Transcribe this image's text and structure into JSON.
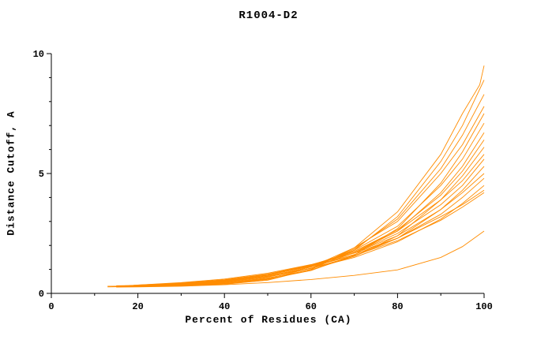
{
  "chart_data": {
    "type": "line",
    "title": "R1004-D2",
    "xlabel": "Percent of Residues (CA)",
    "ylabel": "Distance Cutoff, A",
    "xlim": [
      0,
      100
    ],
    "ylim": [
      0,
      10
    ],
    "x_major_ticks": [
      0,
      20,
      40,
      60,
      80,
      100
    ],
    "x_minor_ticks": [
      10,
      30,
      50,
      70,
      90
    ],
    "y_major_ticks": [
      0,
      5,
      10
    ],
    "y_minor_ticks": [
      1,
      2,
      3,
      4,
      6,
      7,
      8,
      9
    ],
    "grid": false,
    "legend": "none",
    "line_color": "#ff8c00",
    "axis_color": "#000000",
    "series": [
      {
        "points": [
          [
            13,
            0.3
          ],
          [
            20,
            0.3
          ],
          [
            30,
            0.32
          ],
          [
            40,
            0.38
          ],
          [
            50,
            0.55
          ],
          [
            60,
            1.0
          ],
          [
            70,
            1.9
          ],
          [
            80,
            3.4
          ],
          [
            90,
            5.8
          ],
          [
            95,
            7.5
          ],
          [
            99,
            8.7
          ],
          [
            100,
            9.5
          ]
        ]
      },
      {
        "points": [
          [
            14,
            0.28
          ],
          [
            20,
            0.3
          ],
          [
            30,
            0.33
          ],
          [
            40,
            0.4
          ],
          [
            50,
            0.58
          ],
          [
            60,
            1.0
          ],
          [
            70,
            1.8
          ],
          [
            80,
            3.2
          ],
          [
            90,
            5.5
          ],
          [
            95,
            7.0
          ],
          [
            100,
            8.9
          ]
        ]
      },
      {
        "points": [
          [
            14,
            0.3
          ],
          [
            20,
            0.31
          ],
          [
            30,
            0.35
          ],
          [
            40,
            0.44
          ],
          [
            50,
            0.62
          ],
          [
            60,
            1.05
          ],
          [
            70,
            1.85
          ],
          [
            80,
            3.1
          ],
          [
            90,
            5.2
          ],
          [
            95,
            6.6
          ],
          [
            100,
            8.3
          ]
        ]
      },
      {
        "points": [
          [
            15,
            0.32
          ],
          [
            20,
            0.33
          ],
          [
            30,
            0.38
          ],
          [
            40,
            0.48
          ],
          [
            50,
            0.68
          ],
          [
            60,
            1.1
          ],
          [
            70,
            1.9
          ],
          [
            80,
            3.0
          ],
          [
            90,
            5.0
          ],
          [
            95,
            6.2
          ],
          [
            100,
            7.8
          ]
        ]
      },
      {
        "points": [
          [
            13,
            0.27
          ],
          [
            20,
            0.29
          ],
          [
            30,
            0.33
          ],
          [
            40,
            0.42
          ],
          [
            50,
            0.6
          ],
          [
            60,
            0.95
          ],
          [
            70,
            1.6
          ],
          [
            80,
            2.7
          ],
          [
            90,
            4.6
          ],
          [
            95,
            5.9
          ],
          [
            100,
            7.5
          ]
        ]
      },
      {
        "points": [
          [
            16,
            0.3
          ],
          [
            20,
            0.32
          ],
          [
            30,
            0.38
          ],
          [
            40,
            0.5
          ],
          [
            50,
            0.72
          ],
          [
            60,
            1.1
          ],
          [
            70,
            1.8
          ],
          [
            80,
            2.8
          ],
          [
            90,
            4.5
          ],
          [
            95,
            5.6
          ],
          [
            100,
            7.1
          ]
        ]
      },
      {
        "points": [
          [
            15,
            0.28
          ],
          [
            20,
            0.3
          ],
          [
            30,
            0.36
          ],
          [
            40,
            0.47
          ],
          [
            50,
            0.68
          ],
          [
            60,
            1.05
          ],
          [
            70,
            1.7
          ],
          [
            80,
            2.6
          ],
          [
            90,
            4.2
          ],
          [
            95,
            5.3
          ],
          [
            100,
            6.7
          ]
        ]
      },
      {
        "points": [
          [
            17,
            0.32
          ],
          [
            20,
            0.33
          ],
          [
            30,
            0.4
          ],
          [
            40,
            0.52
          ],
          [
            50,
            0.75
          ],
          [
            60,
            1.15
          ],
          [
            70,
            1.75
          ],
          [
            80,
            2.65
          ],
          [
            90,
            4.1
          ],
          [
            95,
            5.1
          ],
          [
            100,
            6.4
          ]
        ]
      },
      {
        "points": [
          [
            14,
            0.29
          ],
          [
            20,
            0.3
          ],
          [
            30,
            0.35
          ],
          [
            40,
            0.45
          ],
          [
            50,
            0.64
          ],
          [
            60,
            0.98
          ],
          [
            70,
            1.55
          ],
          [
            80,
            2.4
          ],
          [
            90,
            3.9
          ],
          [
            95,
            4.9
          ],
          [
            100,
            6.1
          ]
        ]
      },
      {
        "points": [
          [
            18,
            0.33
          ],
          [
            20,
            0.34
          ],
          [
            30,
            0.42
          ],
          [
            40,
            0.55
          ],
          [
            50,
            0.78
          ],
          [
            60,
            1.18
          ],
          [
            70,
            1.75
          ],
          [
            80,
            2.6
          ],
          [
            90,
            3.9
          ],
          [
            95,
            4.7
          ],
          [
            100,
            5.8
          ]
        ]
      },
      {
        "points": [
          [
            16,
            0.3
          ],
          [
            20,
            0.32
          ],
          [
            30,
            0.4
          ],
          [
            40,
            0.53
          ],
          [
            50,
            0.76
          ],
          [
            60,
            1.15
          ],
          [
            70,
            1.7
          ],
          [
            80,
            2.5
          ],
          [
            90,
            3.7
          ],
          [
            95,
            4.5
          ],
          [
            100,
            5.6
          ]
        ]
      },
      {
        "points": [
          [
            15,
            0.28
          ],
          [
            20,
            0.3
          ],
          [
            30,
            0.37
          ],
          [
            40,
            0.49
          ],
          [
            50,
            0.7
          ],
          [
            60,
            1.05
          ],
          [
            70,
            1.55
          ],
          [
            80,
            2.3
          ],
          [
            90,
            3.5
          ],
          [
            95,
            4.3
          ],
          [
            100,
            5.3
          ]
        ]
      },
      {
        "points": [
          [
            19,
            0.34
          ],
          [
            30,
            0.43
          ],
          [
            40,
            0.57
          ],
          [
            50,
            0.8
          ],
          [
            60,
            1.18
          ],
          [
            70,
            1.7
          ],
          [
            80,
            2.4
          ],
          [
            90,
            3.5
          ],
          [
            95,
            4.2
          ],
          [
            100,
            5.0
          ]
        ]
      },
      {
        "points": [
          [
            17,
            0.31
          ],
          [
            20,
            0.33
          ],
          [
            30,
            0.41
          ],
          [
            40,
            0.54
          ],
          [
            50,
            0.77
          ],
          [
            60,
            1.13
          ],
          [
            70,
            1.62
          ],
          [
            80,
            2.3
          ],
          [
            90,
            3.3
          ],
          [
            95,
            4.0
          ],
          [
            100,
            4.8
          ]
        ]
      },
      {
        "points": [
          [
            16,
            0.29
          ],
          [
            20,
            0.31
          ],
          [
            30,
            0.38
          ],
          [
            40,
            0.5
          ],
          [
            50,
            0.71
          ],
          [
            60,
            1.04
          ],
          [
            70,
            1.5
          ],
          [
            80,
            2.15
          ],
          [
            90,
            3.1
          ],
          [
            95,
            3.75
          ],
          [
            100,
            4.5
          ]
        ]
      },
      {
        "points": [
          [
            20,
            0.35
          ],
          [
            30,
            0.45
          ],
          [
            40,
            0.6
          ],
          [
            50,
            0.84
          ],
          [
            60,
            1.2
          ],
          [
            70,
            1.68
          ],
          [
            80,
            2.3
          ],
          [
            90,
            3.2
          ],
          [
            95,
            3.7
          ],
          [
            100,
            4.3
          ]
        ]
      },
      {
        "points": [
          [
            18,
            0.32
          ],
          [
            20,
            0.33
          ],
          [
            30,
            0.42
          ],
          [
            40,
            0.55
          ],
          [
            50,
            0.78
          ],
          [
            60,
            1.12
          ],
          [
            70,
            1.58
          ],
          [
            80,
            2.2
          ],
          [
            90,
            3.05
          ],
          [
            95,
            3.6
          ],
          [
            100,
            4.2
          ]
        ]
      },
      {
        "points": [
          [
            15,
            0.26
          ],
          [
            20,
            0.27
          ],
          [
            30,
            0.3
          ],
          [
            40,
            0.36
          ],
          [
            50,
            0.45
          ],
          [
            60,
            0.58
          ],
          [
            70,
            0.75
          ],
          [
            80,
            0.98
          ],
          [
            90,
            1.5
          ],
          [
            95,
            1.95
          ],
          [
            100,
            2.6
          ]
        ]
      }
    ]
  }
}
